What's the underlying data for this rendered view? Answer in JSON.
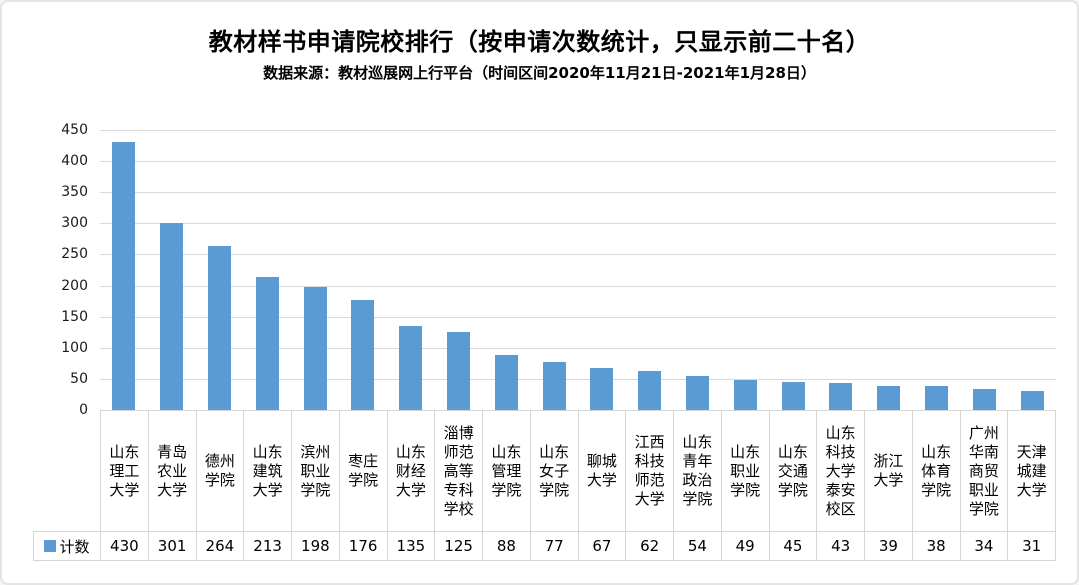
{
  "chart_data": {
    "type": "bar",
    "title": "教材样书申请院校排行（按申请次数统计，只显示前二十名）",
    "subtitle": "数据来源：教材巡展网上行平台（时间区间2020年11月21日-2021年1月28日）",
    "series_name": "计数",
    "categories": [
      "山东理工大学",
      "青岛农业大学",
      "德州学院",
      "山东建筑大学",
      "滨州职业学院",
      "枣庄学院",
      "山东财经大学",
      "淄博师范高等专科学校",
      "山东管理学院",
      "山东女子学院",
      "聊城大学",
      "江西科技师范大学",
      "山东青年政治学院",
      "山东职业学院",
      "山东交通学院",
      "山东科技大学泰安校区",
      "浙江大学",
      "山东体育学院",
      "广州华南商贸职业学院",
      "天津城建大学"
    ],
    "values": [
      430,
      301,
      264,
      213,
      198,
      176,
      135,
      125,
      88,
      77,
      67,
      62,
      54,
      49,
      45,
      43,
      39,
      38,
      34,
      31
    ],
    "y_ticks": [
      0,
      50,
      100,
      150,
      200,
      250,
      300,
      350,
      400,
      450
    ],
    "ylim": [
      0,
      450
    ],
    "xlabel": "",
    "ylabel": "",
    "grid": true,
    "legend_position": "bottom-left data table",
    "bar_color": "#5B9BD5",
    "gridline_color": "#D9D9D9",
    "table_border_color": "#D6D6D6"
  }
}
